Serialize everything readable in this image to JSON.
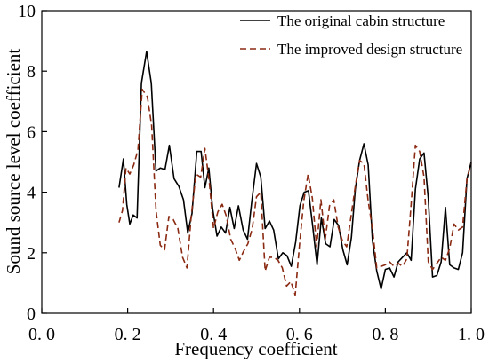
{
  "chart_data": {
    "type": "line",
    "xlabel": "Frequency coefficient",
    "ylabel": "Sound source level coefficient",
    "xlim": [
      0.0,
      1.0
    ],
    "ylim": [
      0,
      10
    ],
    "x_ticks": [
      0.0,
      0.2,
      0.4,
      0.6,
      0.8,
      1.0
    ],
    "x_tick_labels": [
      "0. 0",
      "0. 2",
      "0. 4",
      "0. 6",
      "0. 8",
      "1. 0"
    ],
    "y_ticks": [
      0,
      2,
      4,
      6,
      8,
      10
    ],
    "y_tick_labels": [
      "0",
      "2",
      "4",
      "6",
      "8",
      "10"
    ],
    "grid": false,
    "legend_position": "top-right",
    "series": [
      {
        "name": "The original cabin structure",
        "color": "#000000",
        "style": "solid",
        "points": [
          [
            0.18,
            4.15
          ],
          [
            0.19,
            5.1
          ],
          [
            0.198,
            3.6
          ],
          [
            0.205,
            2.95
          ],
          [
            0.213,
            3.25
          ],
          [
            0.222,
            3.15
          ],
          [
            0.232,
            7.6
          ],
          [
            0.244,
            8.65
          ],
          [
            0.255,
            7.6
          ],
          [
            0.266,
            4.7
          ],
          [
            0.276,
            4.8
          ],
          [
            0.287,
            4.75
          ],
          [
            0.297,
            5.55
          ],
          [
            0.308,
            4.45
          ],
          [
            0.319,
            4.2
          ],
          [
            0.33,
            3.75
          ],
          [
            0.34,
            2.65
          ],
          [
            0.35,
            3.3
          ],
          [
            0.361,
            5.35
          ],
          [
            0.371,
            5.35
          ],
          [
            0.38,
            4.15
          ],
          [
            0.389,
            4.8
          ],
          [
            0.398,
            3.45
          ],
          [
            0.408,
            2.55
          ],
          [
            0.418,
            2.85
          ],
          [
            0.428,
            2.65
          ],
          [
            0.438,
            3.5
          ],
          [
            0.448,
            2.8
          ],
          [
            0.458,
            3.55
          ],
          [
            0.469,
            2.75
          ],
          [
            0.479,
            2.45
          ],
          [
            0.489,
            3.7
          ],
          [
            0.5,
            4.95
          ],
          [
            0.51,
            4.5
          ],
          [
            0.52,
            2.8
          ],
          [
            0.53,
            3.05
          ],
          [
            0.54,
            2.75
          ],
          [
            0.551,
            1.8
          ],
          [
            0.561,
            2.0
          ],
          [
            0.571,
            1.9
          ],
          [
            0.581,
            1.55
          ],
          [
            0.591,
            2.35
          ],
          [
            0.601,
            3.55
          ],
          [
            0.611,
            4.0
          ],
          [
            0.621,
            4.05
          ],
          [
            0.631,
            2.85
          ],
          [
            0.641,
            1.6
          ],
          [
            0.651,
            3.15
          ],
          [
            0.661,
            2.3
          ],
          [
            0.671,
            2.2
          ],
          [
            0.681,
            3.1
          ],
          [
            0.691,
            2.9
          ],
          [
            0.701,
            2.1
          ],
          [
            0.711,
            1.6
          ],
          [
            0.721,
            2.5
          ],
          [
            0.73,
            4.1
          ],
          [
            0.74,
            5.05
          ],
          [
            0.75,
            5.6
          ],
          [
            0.76,
            4.9
          ],
          [
            0.77,
            2.4
          ],
          [
            0.78,
            1.4
          ],
          [
            0.79,
            0.8
          ],
          [
            0.8,
            1.45
          ],
          [
            0.81,
            1.5
          ],
          [
            0.82,
            1.2
          ],
          [
            0.83,
            1.7
          ],
          [
            0.84,
            1.85
          ],
          [
            0.85,
            2.0
          ],
          [
            0.86,
            1.75
          ],
          [
            0.87,
            4.1
          ],
          [
            0.88,
            5.1
          ],
          [
            0.89,
            5.3
          ],
          [
            0.9,
            3.8
          ],
          [
            0.91,
            1.2
          ],
          [
            0.92,
            1.25
          ],
          [
            0.93,
            1.7
          ],
          [
            0.94,
            3.5
          ],
          [
            0.95,
            1.6
          ],
          [
            0.96,
            1.5
          ],
          [
            0.97,
            1.45
          ],
          [
            0.98,
            2.0
          ],
          [
            0.99,
            4.45
          ],
          [
            1.0,
            5.0
          ]
        ]
      },
      {
        "name": "The improved design structure",
        "color": "#8b2a12",
        "style": "dashed",
        "points": [
          [
            0.18,
            3.0
          ],
          [
            0.188,
            3.4
          ],
          [
            0.196,
            4.8
          ],
          [
            0.205,
            4.6
          ],
          [
            0.214,
            4.9
          ],
          [
            0.224,
            5.4
          ],
          [
            0.234,
            7.4
          ],
          [
            0.246,
            7.15
          ],
          [
            0.256,
            6.2
          ],
          [
            0.266,
            3.4
          ],
          [
            0.276,
            2.25
          ],
          [
            0.286,
            2.1
          ],
          [
            0.296,
            3.2
          ],
          [
            0.306,
            3.1
          ],
          [
            0.317,
            2.8
          ],
          [
            0.328,
            1.85
          ],
          [
            0.338,
            1.5
          ],
          [
            0.348,
            3.2
          ],
          [
            0.359,
            4.6
          ],
          [
            0.37,
            4.5
          ],
          [
            0.38,
            5.45
          ],
          [
            0.39,
            4.35
          ],
          [
            0.4,
            2.8
          ],
          [
            0.41,
            3.35
          ],
          [
            0.42,
            3.6
          ],
          [
            0.43,
            3.2
          ],
          [
            0.44,
            2.45
          ],
          [
            0.45,
            2.15
          ],
          [
            0.46,
            1.75
          ],
          [
            0.47,
            2.05
          ],
          [
            0.48,
            2.3
          ],
          [
            0.49,
            2.8
          ],
          [
            0.5,
            3.85
          ],
          [
            0.51,
            4.0
          ],
          [
            0.52,
            1.4
          ],
          [
            0.53,
            1.85
          ],
          [
            0.54,
            1.85
          ],
          [
            0.55,
            1.75
          ],
          [
            0.56,
            1.5
          ],
          [
            0.57,
            0.9
          ],
          [
            0.58,
            1.05
          ],
          [
            0.59,
            0.6
          ],
          [
            0.6,
            2.25
          ],
          [
            0.61,
            3.7
          ],
          [
            0.62,
            4.6
          ],
          [
            0.63,
            3.8
          ],
          [
            0.64,
            2.2
          ],
          [
            0.65,
            3.75
          ],
          [
            0.66,
            2.45
          ],
          [
            0.67,
            3.55
          ],
          [
            0.68,
            3.75
          ],
          [
            0.69,
            2.85
          ],
          [
            0.7,
            2.4
          ],
          [
            0.71,
            2.2
          ],
          [
            0.72,
            3.2
          ],
          [
            0.73,
            4.2
          ],
          [
            0.74,
            5.05
          ],
          [
            0.75,
            4.95
          ],
          [
            0.76,
            3.7
          ],
          [
            0.77,
            2.8
          ],
          [
            0.78,
            1.5
          ],
          [
            0.79,
            1.55
          ],
          [
            0.8,
            1.6
          ],
          [
            0.81,
            1.7
          ],
          [
            0.82,
            1.55
          ],
          [
            0.83,
            1.65
          ],
          [
            0.84,
            1.55
          ],
          [
            0.85,
            1.8
          ],
          [
            0.86,
            3.6
          ],
          [
            0.87,
            5.55
          ],
          [
            0.88,
            5.35
          ],
          [
            0.89,
            4.5
          ],
          [
            0.9,
            1.7
          ],
          [
            0.91,
            1.45
          ],
          [
            0.92,
            1.65
          ],
          [
            0.93,
            1.85
          ],
          [
            0.94,
            1.75
          ],
          [
            0.95,
            2.15
          ],
          [
            0.96,
            2.95
          ],
          [
            0.97,
            2.75
          ],
          [
            0.98,
            2.85
          ],
          [
            0.99,
            4.45
          ],
          [
            1.0,
            4.95
          ]
        ]
      }
    ]
  }
}
